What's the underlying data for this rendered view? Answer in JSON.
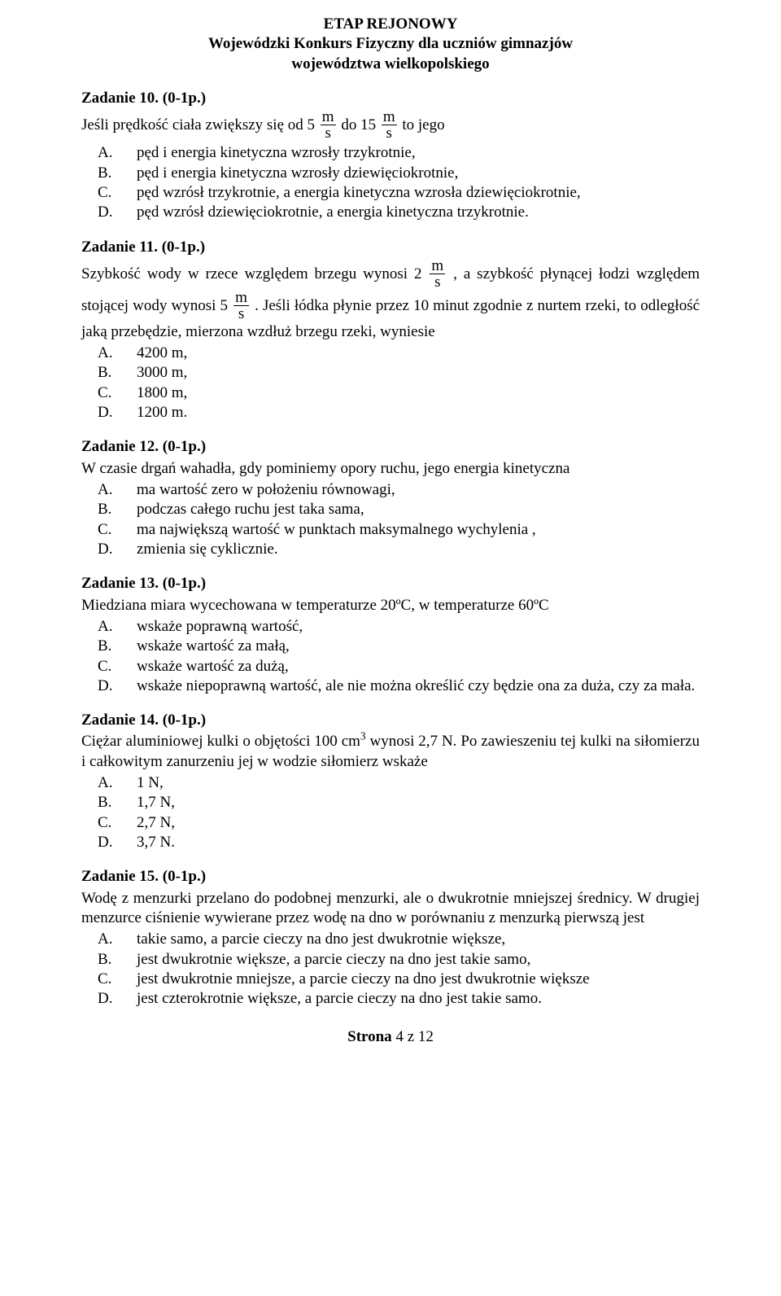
{
  "header": {
    "line1": "ETAP REJONOWY",
    "line2": "Wojewódzki Konkurs Fizyczny dla uczniów gimnazjów",
    "line3": "województwa wielkopolskiego"
  },
  "tasks": {
    "t10": {
      "title": "Zadanie 10. (0-1p.)",
      "stem_prefix": "Jeśli prędkość ciała zwiększy się od  ",
      "v1": "5",
      "stem_mid1": "   do  ",
      "v2": "15",
      "stem_mid2": "   to jego",
      "frac_num": "m",
      "frac_den": "s",
      "options": [
        "pęd i energia kinetyczna wzrosły trzykrotnie,",
        "pęd i energia kinetyczna wzrosły dziewięciokrotnie,",
        "pęd wzrósł trzykrotnie, a energia kinetyczna wzrosła dziewięciokrotnie,",
        "pęd wzrósł dziewięciokrotnie, a energia kinetyczna trzykrotnie."
      ]
    },
    "t11": {
      "title": "Zadanie 11. (0-1p.)",
      "stem1_pre": "Szybkość  wody  w  rzece  względem  brzegu  wynosi   ",
      "v1": "2",
      "stem1_post": " ,  a  szybkość  płynącej  łodzi",
      "stem2_pre": "względem stojącej wody wynosi   ",
      "v2": "5",
      "stem2_post": " . Jeśli łódka płynie przez 10 minut zgodnie z nurtem",
      "stem3": "rzeki, to odległość jaką przebędzie, mierzona wzdłuż brzegu rzeki, wyniesie",
      "frac_num": "m",
      "frac_den": "s",
      "options": [
        "4200 m,",
        "3000 m,",
        "1800 m,",
        "1200 m."
      ]
    },
    "t12": {
      "title": "Zadanie 12. (0-1p.)",
      "stem": "W czasie drgań wahadła, gdy pominiemy opory ruchu, jego energia kinetyczna",
      "options": [
        "ma wartość zero w położeniu równowagi,",
        "podczas całego ruchu jest taka sama,",
        "ma największą wartość w punktach maksymalnego wychylenia ,",
        "zmienia się cyklicznie."
      ]
    },
    "t13": {
      "title": "Zadanie 13. (0-1p.)",
      "stem": "Miedziana miara wycechowana w temperaturze 20ºC, w temperaturze 60ºC",
      "options": [
        "wskaże poprawną wartość,",
        "wskaże wartość za małą,",
        "wskaże wartość za dużą,",
        "wskaże niepoprawną wartość, ale nie można określić czy będzie ona za duża, czy za mała."
      ]
    },
    "t14": {
      "title": "Zadanie 14. (0-1p.)",
      "stem_pre": "Ciężar  aluminiowej  kulki  o  objętości  100 cm",
      "stem_sup": "3",
      "stem_post": "  wynosi  2,7 N.  Po  zawieszeniu  tej  kulki na siłomierzu i całkowitym zanurzeniu jej w wodzie siłomierz wskaże",
      "options": [
        "1 N,",
        "1,7 N,",
        "2,7 N,",
        "3,7 N."
      ]
    },
    "t15": {
      "title": "Zadanie 15. (0-1p.)",
      "stem": "Wodę z menzurki przelano do podobnej menzurki, ale o dwukrotnie mniejszej średnicy. W drugiej menzurce ciśnienie wywierane przez wodę na dno w porównaniu z menzurką pierwszą jest",
      "options": [
        "takie samo, a parcie cieczy na dno jest dwukrotnie większe,",
        "jest dwukrotnie większe, a parcie cieczy na dno jest takie samo,",
        "jest dwukrotnie mniejsze, a parcie cieczy na dno jest dwukrotnie większe",
        "jest czterokrotnie większe, a parcie cieczy na dno jest takie samo."
      ]
    }
  },
  "letters": [
    "A.",
    "B.",
    "C.",
    "D."
  ],
  "footer": {
    "prefix": "Strona ",
    "page": "4",
    "suffix": " z 12"
  }
}
